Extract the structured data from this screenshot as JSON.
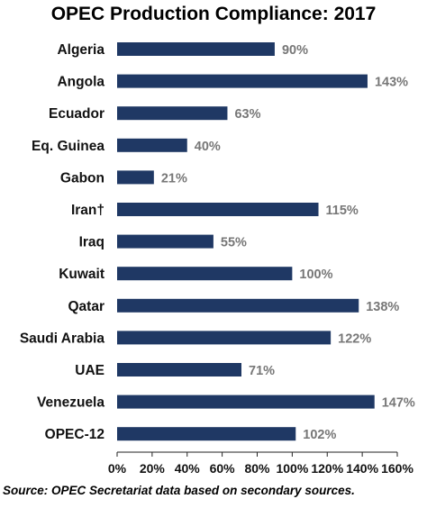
{
  "chart_data": {
    "type": "bar",
    "orientation": "horizontal",
    "title": "OPEC Production Compliance: 2017",
    "categories": [
      "Algeria",
      "Angola",
      "Ecuador",
      "Eq. Guinea",
      "Gabon",
      "Iran†",
      "Iraq",
      "Kuwait",
      "Qatar",
      "Saudi Arabia",
      "UAE",
      "Venezuela",
      "OPEC-12"
    ],
    "values": [
      90,
      143,
      63,
      40,
      21,
      115,
      55,
      100,
      138,
      122,
      71,
      147,
      102
    ],
    "value_labels": [
      "90%",
      "143%",
      "63%",
      "40%",
      "21%",
      "115%",
      "55%",
      "100%",
      "138%",
      "122%",
      "71%",
      "147%",
      "102%"
    ],
    "xlim": [
      0,
      160
    ],
    "x_ticks": [
      0,
      20,
      40,
      60,
      80,
      100,
      120,
      140,
      160
    ],
    "x_tick_labels": [
      "0%",
      "20%",
      "40%",
      "60%",
      "80%",
      "100%",
      "120%",
      "140%",
      "160%"
    ],
    "xlabel": "",
    "ylabel": "",
    "grid": false,
    "legend": "none",
    "bar_color": "#1f3864",
    "value_label_color": "#777777"
  },
  "source": "Source: OPEC Secretariat data based on  secondary sources."
}
